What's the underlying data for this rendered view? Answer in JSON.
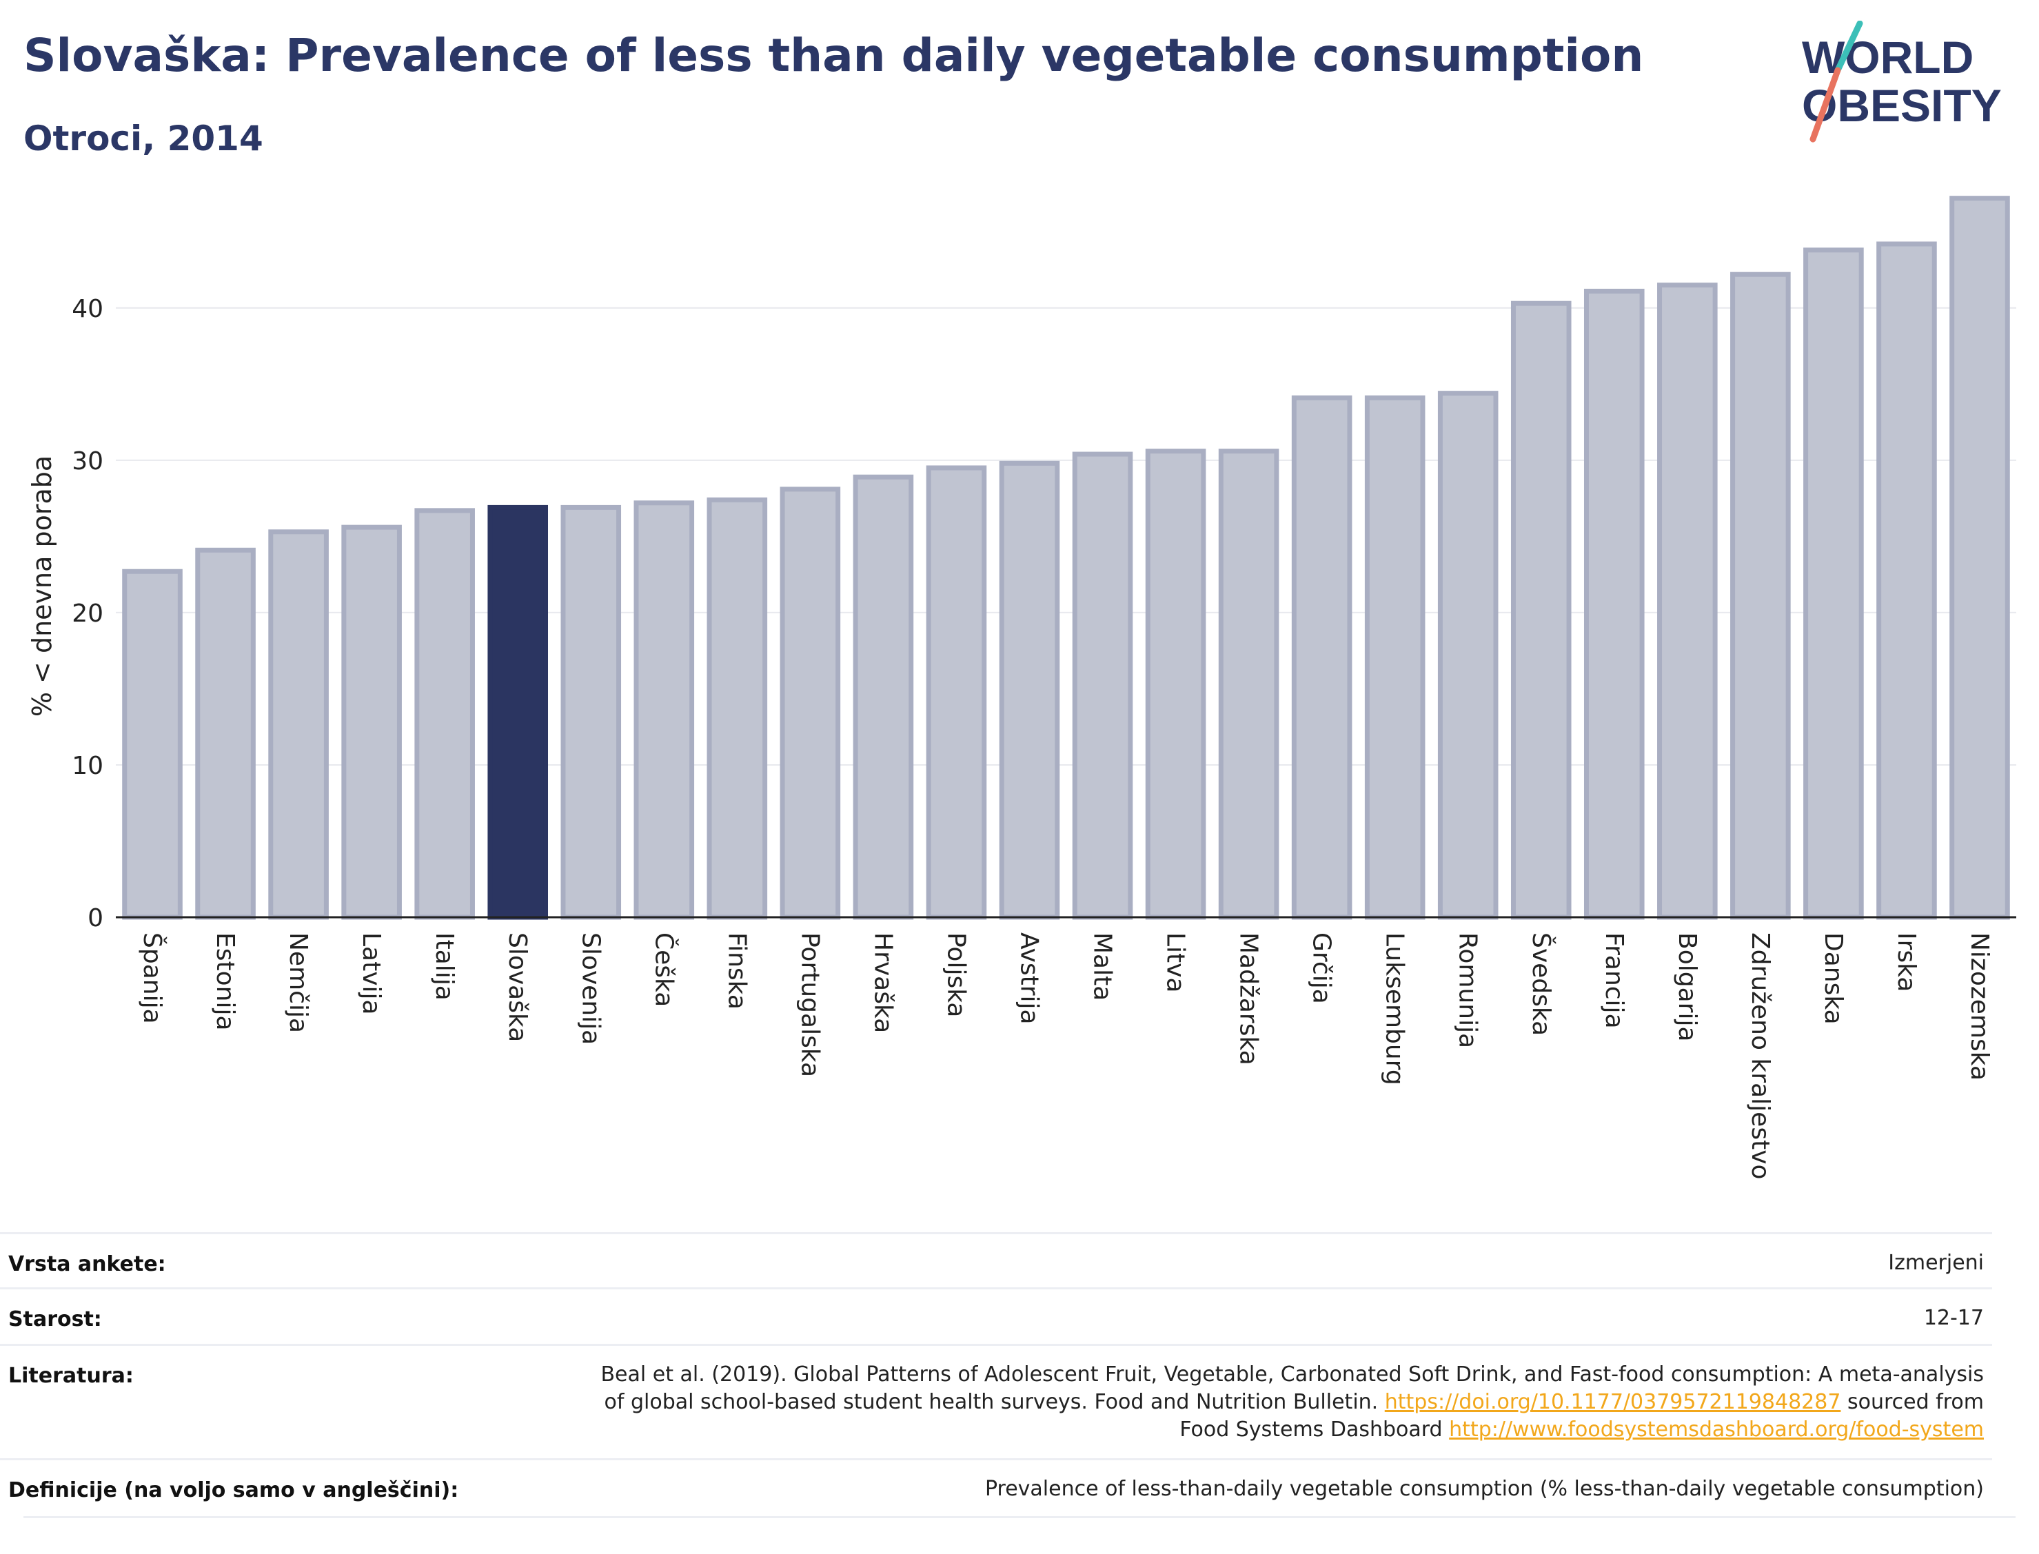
{
  "header": {
    "title": "Slovaška: Prevalence of less than daily vegetable consumption",
    "subtitle": "Otroci, 2014"
  },
  "logo": {
    "line1": "WORLD",
    "line2": "OBESITY"
  },
  "colors": {
    "bar_fill": "#c0c4d1",
    "bar_stroke": "#a9aec2",
    "highlight_fill": "#2b3561",
    "axis": "#222222",
    "grid": "#e8e9ee",
    "logo_teal": "#3cbfb8",
    "logo_coral": "#e8735f",
    "link": "#f2a71b"
  },
  "chart_data": {
    "type": "bar",
    "ylabel": "% < dnevna poraba",
    "ylim": [
      0,
      48
    ],
    "yticks": [
      0,
      10,
      20,
      30,
      40
    ],
    "grid": true,
    "highlight": "Slovaška",
    "categories": [
      "Španija",
      "Estonija",
      "Nemčija",
      "Latvija",
      "Italija",
      "Slovaška",
      "Slovenija",
      "Češka",
      "Finska",
      "Portugalska",
      "Hrvaška",
      "Poljska",
      "Avstrija",
      "Malta",
      "Litva",
      "Madžarska",
      "Grčija",
      "Luksemburg",
      "Romunija",
      "Švedska",
      "Francija",
      "Bolgarija",
      "Združeno kraljestvo",
      "Danska",
      "Irska",
      "Nizozemska"
    ],
    "values": [
      22.7,
      24.1,
      25.3,
      25.6,
      26.7,
      26.9,
      26.9,
      27.2,
      27.4,
      28.1,
      28.9,
      29.5,
      29.8,
      30.4,
      30.6,
      30.6,
      34.1,
      34.1,
      34.4,
      40.3,
      41.1,
      41.5,
      42.2,
      43.8,
      44.2,
      47.2
    ]
  },
  "info": {
    "survey_label": "Vrsta ankete:",
    "survey_value": "Izmerjeni",
    "age_label": "Starost:",
    "age_value": "12-17",
    "lit_label": "Literatura:",
    "lit_text1": "Beal et al. (2019). Global Patterns of Adolescent Fruit, Vegetable, Carbonated Soft Drink, and Fast-food consumption: A meta-analysis",
    "lit_text2": "of global school-based student health surveys. Food and Nutrition Bulletin.",
    "lit_link1": "https://doi.org/10.1177/0379572119848287",
    "lit_text3": "sourced from",
    "lit_text4": "Food Systems Dashboard",
    "lit_link2": "http://www.foodsystemsdashboard.org/food-system",
    "def_label": "Definicije (na voljo samo v angleščini):",
    "def_value": "Prevalence of less-than-daily vegetable consumption (% less-than-daily vegetable consumption)"
  }
}
